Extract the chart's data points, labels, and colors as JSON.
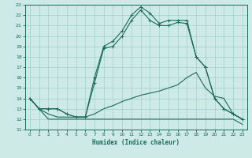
{
  "title": "",
  "xlabel": "Humidex (Indice chaleur)",
  "bg_color": "#ceeae6",
  "grid_color": "#a8d4ce",
  "line_color": "#1a6b5a",
  "xlim": [
    -0.5,
    23.5
  ],
  "ylim": [
    11,
    23
  ],
  "xticks": [
    0,
    1,
    2,
    3,
    4,
    5,
    6,
    7,
    8,
    9,
    10,
    11,
    12,
    13,
    14,
    15,
    16,
    17,
    18,
    19,
    20,
    21,
    22,
    23
  ],
  "yticks": [
    11,
    12,
    13,
    14,
    15,
    16,
    17,
    18,
    19,
    20,
    21,
    22,
    23
  ],
  "curve1_x": [
    0,
    1,
    2,
    3,
    4,
    5,
    6,
    7,
    8,
    9,
    10,
    11,
    12,
    13,
    14,
    15,
    16,
    17,
    18,
    19,
    20,
    21,
    22,
    23
  ],
  "curve1_y": [
    14,
    13,
    13,
    13,
    12.5,
    12.2,
    12.2,
    16,
    19,
    19.5,
    20.5,
    22,
    22.8,
    22.2,
    21.2,
    21.5,
    21.5,
    21.5,
    18.0,
    17.0,
    14.0,
    13.0,
    12.5,
    12.0
  ],
  "curve2_x": [
    0,
    1,
    2,
    3,
    4,
    5,
    6,
    7,
    8,
    9,
    10,
    11,
    12,
    13,
    14,
    15,
    16,
    17,
    18,
    19,
    20,
    21,
    22,
    23
  ],
  "curve2_y": [
    14,
    13,
    13,
    13,
    12.5,
    12.2,
    12.2,
    15.5,
    18.8,
    19.0,
    20.0,
    21.5,
    22.5,
    21.5,
    21.0,
    21.0,
    21.3,
    21.2,
    18.0,
    17.0,
    14.0,
    13.0,
    12.5,
    12.0
  ],
  "curve3_x": [
    0,
    1,
    2,
    3,
    4,
    5,
    6,
    7,
    8,
    9,
    10,
    11,
    12,
    13,
    14,
    15,
    16,
    17,
    18,
    19,
    20,
    21,
    22,
    23
  ],
  "curve3_y": [
    14.0,
    13.0,
    12.5,
    12.2,
    12.2,
    12.2,
    12.2,
    12.5,
    13.0,
    13.3,
    13.7,
    14.0,
    14.3,
    14.5,
    14.7,
    15.0,
    15.3,
    16.0,
    16.5,
    15.0,
    14.2,
    14.0,
    12.5,
    12.0
  ],
  "curve4_x": [
    0,
    1,
    2,
    3,
    4,
    5,
    6,
    7,
    8,
    9,
    10,
    11,
    12,
    13,
    14,
    15,
    16,
    17,
    18,
    19,
    20,
    21,
    22,
    23
  ],
  "curve4_y": [
    14.0,
    13.0,
    12.0,
    12.0,
    12.0,
    12.0,
    12.0,
    12.0,
    12.0,
    12.0,
    12.0,
    12.0,
    12.0,
    12.0,
    12.0,
    12.0,
    12.0,
    12.0,
    12.0,
    12.0,
    12.0,
    12.0,
    12.0,
    11.5
  ]
}
